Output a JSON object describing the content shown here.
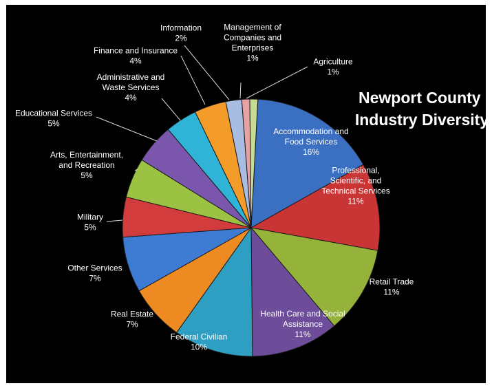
{
  "chart_data": {
    "type": "pie",
    "title": [
      "Newport County",
      "Industry Diversity"
    ],
    "slices": [
      {
        "label": [
          "Accommodation and",
          "Food Services",
          "16%"
        ],
        "value": 16,
        "color": "#3b6fc2"
      },
      {
        "label": [
          "Professional,",
          "Scientific, and",
          "Technical Services",
          "11%"
        ],
        "value": 11,
        "color": "#c93535"
      },
      {
        "label": [
          "Retail Trade",
          "11%"
        ],
        "value": 11,
        "color": "#95b23a"
      },
      {
        "label": [
          "Health Care and Social",
          "Assistance",
          "11%"
        ],
        "value": 11,
        "color": "#6d4c9a"
      },
      {
        "label": [
          "Federal Civilian",
          "10%"
        ],
        "value": 10,
        "color": "#2e9fc2"
      },
      {
        "label": [
          "Real Estate",
          "7%"
        ],
        "value": 7,
        "color": "#ee8a22"
      },
      {
        "label": [
          "Other Services",
          "7%"
        ],
        "value": 7,
        "color": "#3e7cd4"
      },
      {
        "label": [
          "Military",
          "5%"
        ],
        "value": 5,
        "color": "#d23c3c"
      },
      {
        "label": [
          "Arts, Entertainment,",
          "and Recreation",
          "5%"
        ],
        "value": 5,
        "color": "#9cc244"
      },
      {
        "label": [
          "Educational Services",
          "5%"
        ],
        "value": 5,
        "color": "#7a57ad"
      },
      {
        "label": [
          "Administrative and",
          "Waste Services",
          "4%"
        ],
        "value": 4,
        "color": "#2fb3d6"
      },
      {
        "label": [
          "Finance and Insurance",
          "4%"
        ],
        "value": 4,
        "color": "#f39c2a"
      },
      {
        "label": [
          "Information",
          "2%"
        ],
        "value": 2,
        "color": "#a9bde2"
      },
      {
        "label": [
          "Management of",
          "Companies and",
          "Enterprises",
          "1%"
        ],
        "value": 1,
        "color": "#e6a3a3"
      },
      {
        "label": [
          "Agriculture",
          "1%"
        ],
        "value": 1,
        "color": "#c6dc94"
      }
    ]
  }
}
